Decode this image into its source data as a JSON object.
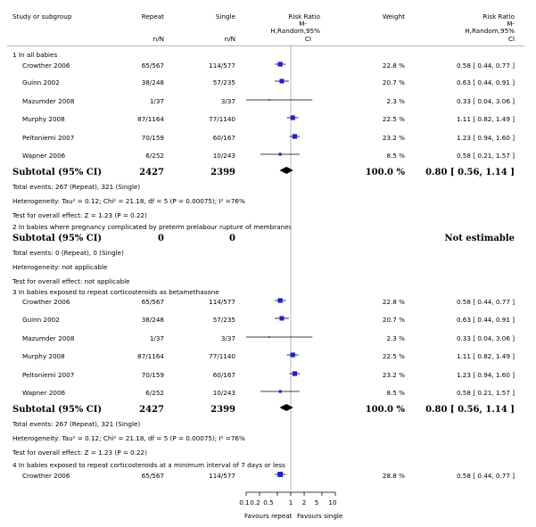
{
  "header": {
    "study": "Study or subgroup",
    "repeat": "Repeat",
    "single": "Single",
    "nN": "n/N",
    "risk_ratio_title": "Risk Ratio",
    "risk_ratio_sub1": "M-",
    "risk_ratio_sub2": "H,Random,95%",
    "risk_ratio_sub3": "CI",
    "weight": "Weight",
    "rr_right_title": "Risk Ratio",
    "rr_right_sub1": "M-",
    "rr_right_sub2": "H,Random,95%",
    "rr_right_sub3": "CI"
  },
  "groups": [
    {
      "label": "1 In all babies",
      "studies": [
        {
          "name": "Crowther 2006",
          "repeat": "65/567",
          "single": "114/577",
          "weight": "22.8 %",
          "ci": "0.58 [ 0.44, 0.77 ]"
        },
        {
          "name": "Guinn 2002",
          "repeat": "38/248",
          "single": "57/235",
          "weight": "20.7 %",
          "ci": "0.63 [ 0.44, 0.91 ]"
        },
        {
          "name": "Mazumder 2008",
          "repeat": "1/37",
          "single": "3/37",
          "weight": "2.3 %",
          "ci": "0.33 [ 0.04, 3.06 ]"
        },
        {
          "name": "Murphy 2008",
          "repeat": "87/1164",
          "single": "77/1140",
          "weight": "22.5 %",
          "ci": "1.11 [ 0.82, 1.49 ]"
        },
        {
          "name": "Peltoniemi 2007",
          "repeat": "70/159",
          "single": "60/167",
          "weight": "23.2 %",
          "ci": "1.23 [ 0.94, 1.60 ]"
        },
        {
          "name": "Wapner 2006",
          "repeat": "6/252",
          "single": "10/243",
          "weight": "8.5 %",
          "ci": "0.58 [ 0.21, 1.57 ]"
        }
      ],
      "subtotal": {
        "label": "Subtotal (95% CI)",
        "repeat": "2427",
        "single": "2399",
        "weight": "100.0 %",
        "ci": "0.80 [ 0.56, 1.14 ]"
      },
      "total_events": "Total events: 267 (Repeat), 321 (Single)",
      "heterogeneity": "Heterogeneity: Tau² = 0.12; Chi² = 21.18, df = 5 (P = 0.00075); I² =76%",
      "overall_effect": "Test for overall effect: Z = 1.23 (P = 0.22)"
    },
    {
      "label": "2 In babies where pregnancy complicated by preterm prelabour rupture of membranes",
      "studies": [],
      "subtotal": {
        "label": "Subtotal (95% CI)",
        "repeat": "0",
        "single": "0",
        "weight": "",
        "ci": "Not estimable"
      },
      "total_events": "Total events: 0 (Repeat), 0 (Single)",
      "heterogeneity": "Heterogeneity: not applicable",
      "overall_effect": "Test for overall effect: not applicable"
    },
    {
      "label": "3 In babies exposed to repeat corticosteroids as betamethasone",
      "studies": [
        {
          "name": "Crowther 2006",
          "repeat": "65/567",
          "single": "114/577",
          "weight": "22.8 %",
          "ci": "0.58 [ 0.44, 0.77 ]"
        },
        {
          "name": "Guinn 2002",
          "repeat": "38/248",
          "single": "57/235",
          "weight": "20.7 %",
          "ci": "0.63 [ 0.44, 0.91 ]"
        },
        {
          "name": "Mazumder 2008",
          "repeat": "1/37",
          "single": "3/37",
          "weight": "2.3 %",
          "ci": "0.33 [ 0.04, 3.06 ]"
        },
        {
          "name": "Murphy 2008",
          "repeat": "87/1164",
          "single": "77/1140",
          "weight": "22.5 %",
          "ci": "1.11 [ 0.82, 1.49 ]"
        },
        {
          "name": "Peltoniemi 2007",
          "repeat": "70/159",
          "single": "60/167",
          "weight": "23.2 %",
          "ci": "1.23 [ 0.94, 1.60 ]"
        },
        {
          "name": "Wapner 2006",
          "repeat": "6/252",
          "single": "10/243",
          "weight": "8.5 %",
          "ci": "0.58 [ 0.21, 1.57 ]"
        }
      ],
      "subtotal": {
        "label": "Subtotal (95% CI)",
        "repeat": "2427",
        "single": "2399",
        "weight": "100.0 %",
        "ci": "0.80 [ 0.56, 1.14 ]"
      },
      "total_events": "Total events: 267 (Repeat), 321 (Single)",
      "heterogeneity": "Heterogeneity: Tau² = 0.12; Chi² = 21.18, df = 5 (P = 0.00075); I² =76%",
      "overall_effect": "Test for overall effect: Z = 1.23 (P = 0.22)"
    },
    {
      "label": "4 In babies exposed to repeat corticosteroids at a minimum interval of 7 days or less",
      "studies": [
        {
          "name": "Crowther 2006",
          "repeat": "65/567",
          "single": "114/577",
          "weight": "28.8 %",
          "ci": "0.58 [ 0.44, 0.77 ]"
        }
      ]
    }
  ],
  "axis": {
    "ticks": [
      "0.1",
      "0.2",
      "0.5",
      "1",
      "2",
      "5",
      "10"
    ],
    "favours_left": "Favours repeat",
    "favours_right": "Favours single"
  },
  "chart_data": {
    "type": "forest",
    "title": "",
    "xlabel": "Risk Ratio (M-H, Random, 95% CI)",
    "xscale": "log",
    "xlim": [
      0.1,
      10
    ],
    "tick_values": [
      0.1,
      0.2,
      0.5,
      1,
      2,
      5,
      10
    ],
    "null_value": 1,
    "colors": {
      "square": "#1f1fd6",
      "diamond": "#000000",
      "axis": "#000000",
      "null_line": "#b8b8b8"
    },
    "rows": [
      {
        "group": 1,
        "study": "Crowther 2006",
        "rr": 0.58,
        "lo": 0.44,
        "hi": 0.77,
        "weight": 22.8
      },
      {
        "group": 1,
        "study": "Guinn 2002",
        "rr": 0.63,
        "lo": 0.44,
        "hi": 0.91,
        "weight": 20.7
      },
      {
        "group": 1,
        "study": "Mazumder 2008",
        "rr": 0.33,
        "lo": 0.04,
        "hi": 3.06,
        "weight": 2.3
      },
      {
        "group": 1,
        "study": "Murphy 2008",
        "rr": 1.11,
        "lo": 0.82,
        "hi": 1.49,
        "weight": 22.5
      },
      {
        "group": 1,
        "study": "Peltoniemi 2007",
        "rr": 1.23,
        "lo": 0.94,
        "hi": 1.6,
        "weight": 23.2
      },
      {
        "group": 1,
        "study": "Wapner 2006",
        "rr": 0.58,
        "lo": 0.21,
        "hi": 1.57,
        "weight": 8.5
      },
      {
        "group": 1,
        "study": "Subtotal",
        "rr": 0.8,
        "lo": 0.56,
        "hi": 1.14,
        "summary": true
      },
      {
        "group": 3,
        "study": "Crowther 2006",
        "rr": 0.58,
        "lo": 0.44,
        "hi": 0.77,
        "weight": 22.8
      },
      {
        "group": 3,
        "study": "Guinn 2002",
        "rr": 0.63,
        "lo": 0.44,
        "hi": 0.91,
        "weight": 20.7
      },
      {
        "group": 3,
        "study": "Mazumder 2008",
        "rr": 0.33,
        "lo": 0.04,
        "hi": 3.06,
        "weight": 2.3
      },
      {
        "group": 3,
        "study": "Murphy 2008",
        "rr": 1.11,
        "lo": 0.82,
        "hi": 1.49,
        "weight": 22.5
      },
      {
        "group": 3,
        "study": "Peltoniemi 2007",
        "rr": 1.23,
        "lo": 0.94,
        "hi": 1.6,
        "weight": 23.2
      },
      {
        "group": 3,
        "study": "Wapner 2006",
        "rr": 0.58,
        "lo": 0.21,
        "hi": 1.57,
        "weight": 8.5
      },
      {
        "group": 3,
        "study": "Subtotal",
        "rr": 0.8,
        "lo": 0.56,
        "hi": 1.14,
        "summary": true
      },
      {
        "group": 4,
        "study": "Crowther 2006",
        "rr": 0.58,
        "lo": 0.44,
        "hi": 0.77,
        "weight": 28.8
      }
    ]
  }
}
